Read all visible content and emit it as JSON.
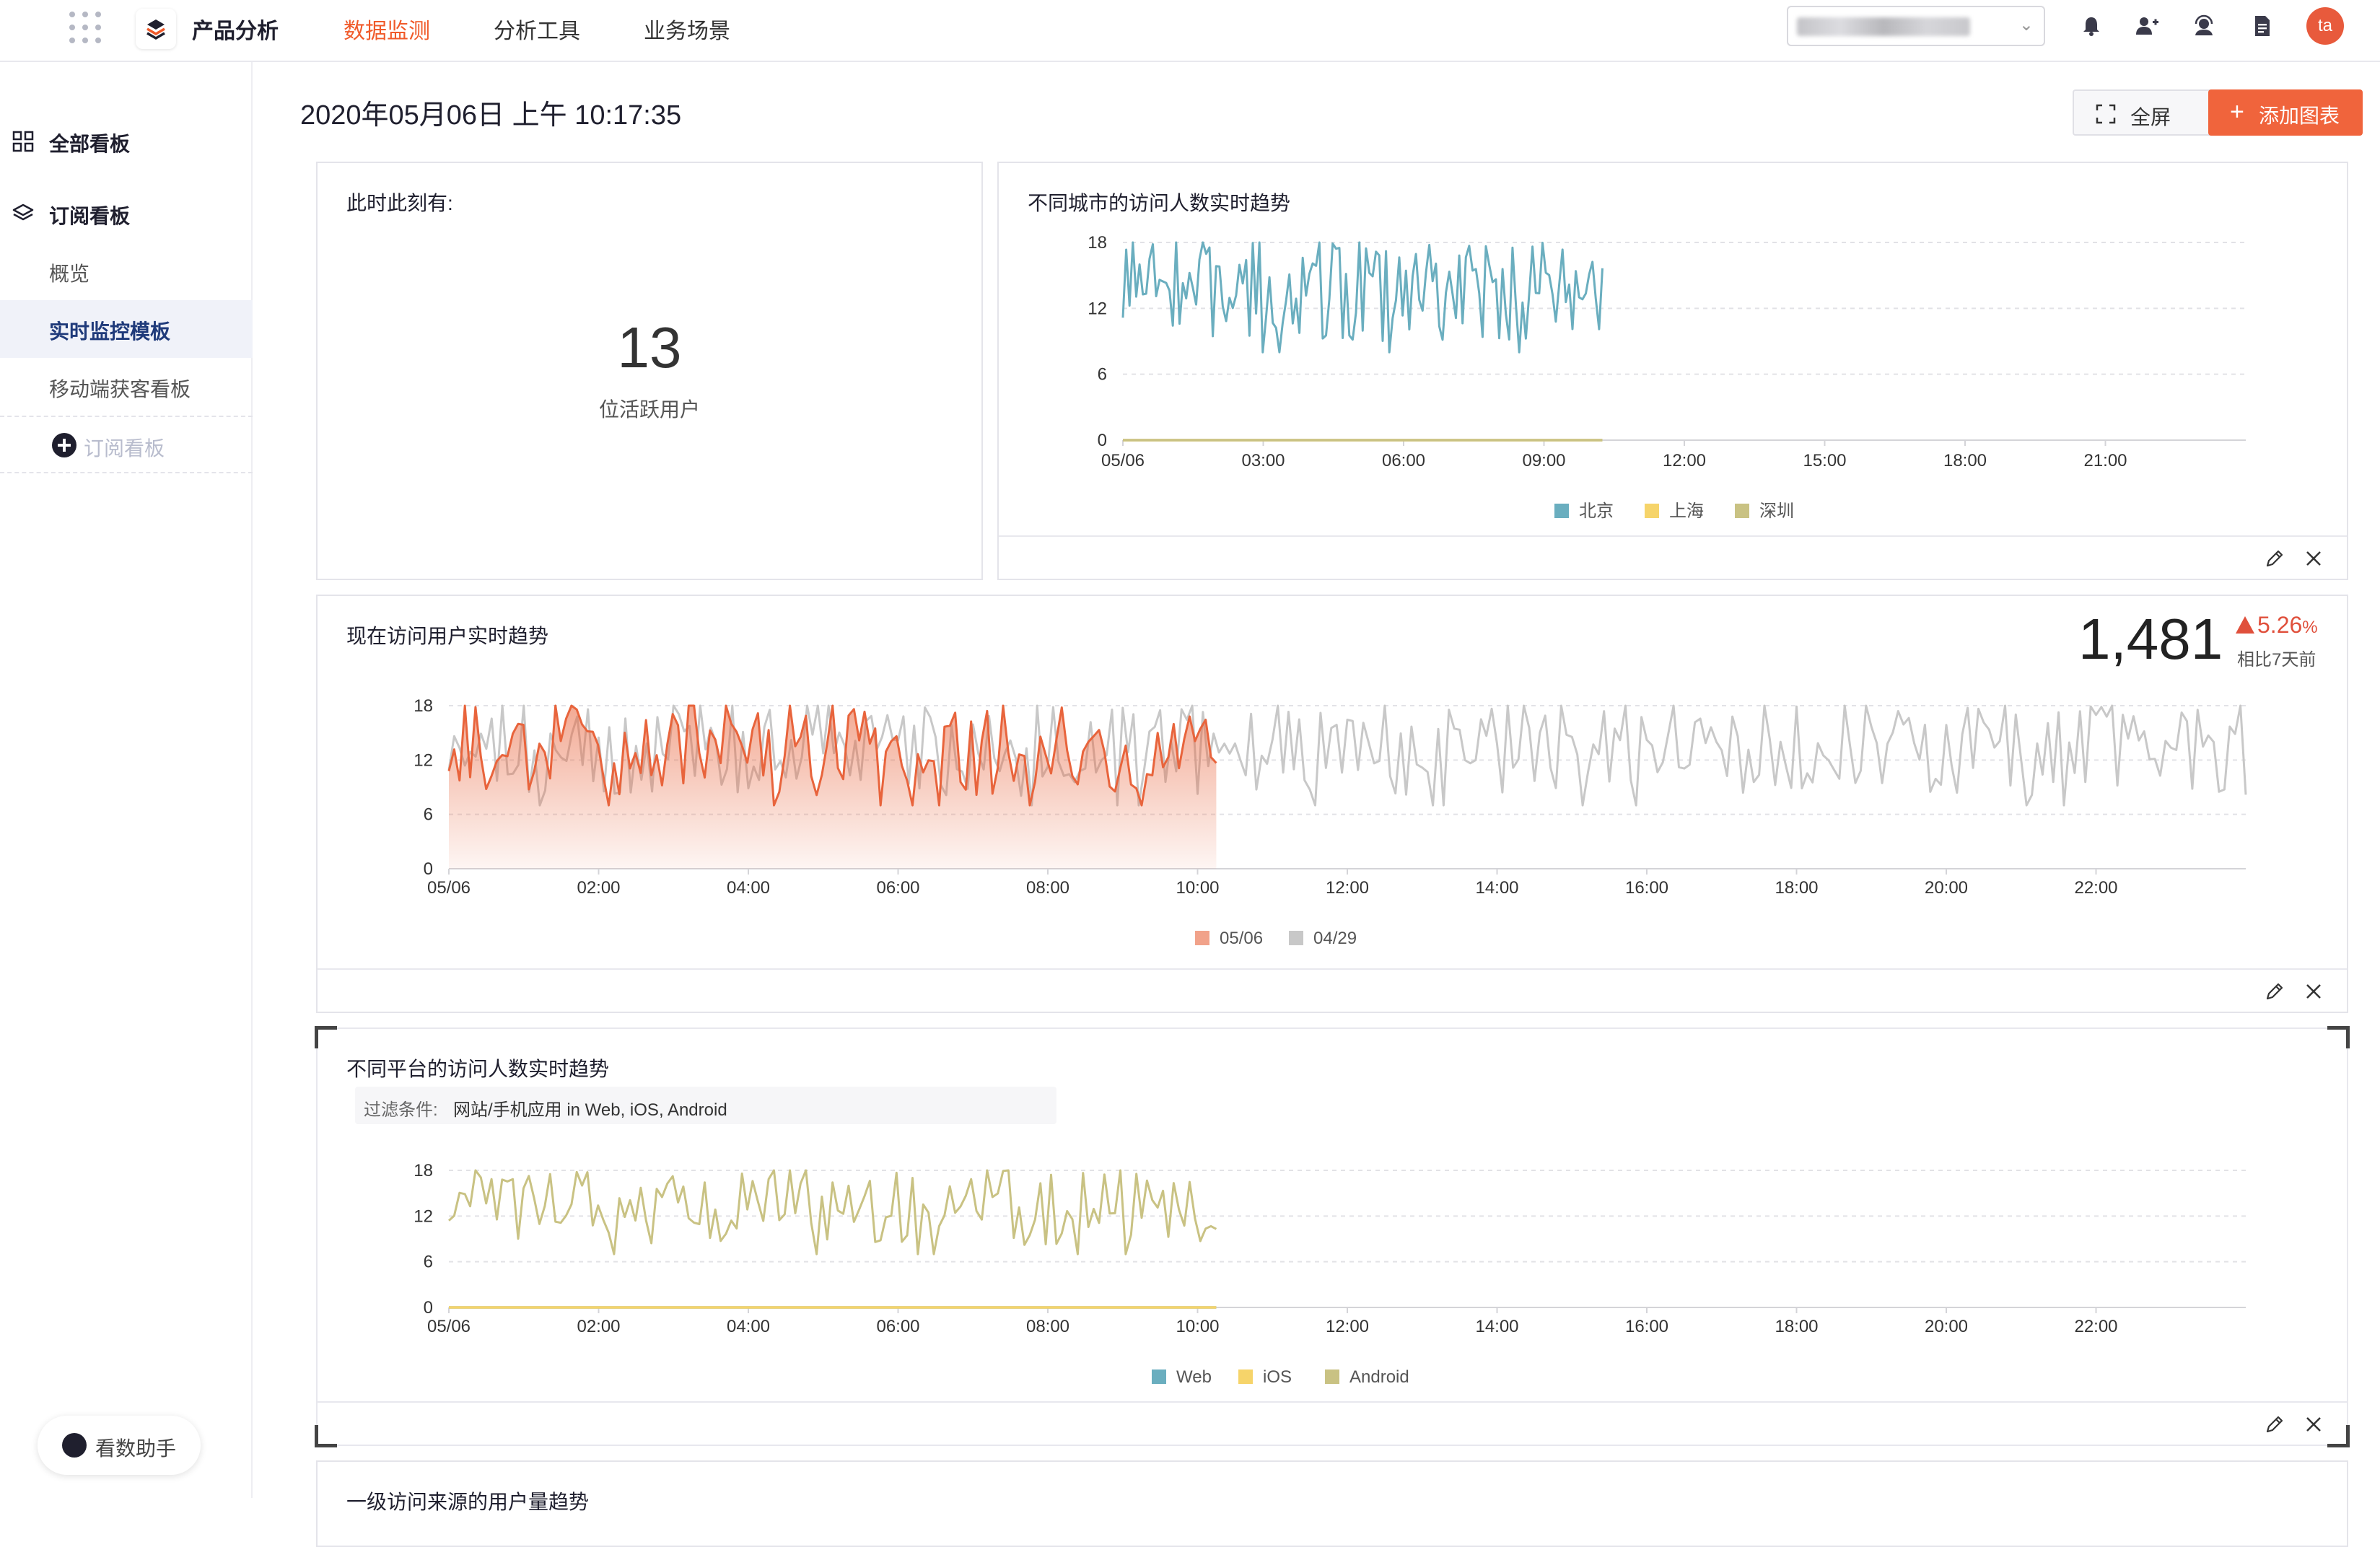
{
  "topbar": {
    "brand": "产品分析",
    "nav": [
      "数据监测",
      "分析工具",
      "业务场景"
    ],
    "active_nav": "数据监测",
    "avatar": "ta",
    "accent": "#f05a2a"
  },
  "sidebar": {
    "all_boards": "全部看板",
    "subscribed_boards": "订阅看板",
    "items": [
      "概览",
      "实时监控模板",
      "移动端获客看板"
    ],
    "active_item": "实时监控模板",
    "add_board": "订阅看板",
    "assistant": "看数助手"
  },
  "main": {
    "datetime": "2020年05月06日 上午 10:17:35",
    "fullscreen": "全屏",
    "add_chart": "添加图表"
  },
  "cards": {
    "active_now": {
      "title": "此时此刻有:",
      "value": "13",
      "unit": "位活跃用户"
    },
    "city_trend": {
      "title": "不同城市的访问人数实时趋势"
    },
    "user_trend": {
      "title": "现在访问用户实时趋势",
      "kpi": "1,481",
      "change": "5.26",
      "change_unit": "%",
      "compare": "相比7天前"
    },
    "platform_trend": {
      "title": "不同平台的访问人数实时趋势",
      "filter_label": "过滤条件:",
      "filter_value": "网站/手机应用 in Web, iOS, Android"
    },
    "source_trend": {
      "title": "一级访问来源的用户量趋势"
    }
  },
  "chart_data": [
    {
      "type": "line",
      "title": "不同城市的访问人数实时趋势",
      "x_ticks": [
        "05/06",
        "03:00",
        "06:00",
        "09:00",
        "12:00",
        "15:00",
        "18:00",
        "21:00"
      ],
      "y_ticks": [
        0,
        6,
        12,
        18
      ],
      "ylim": [
        0,
        18
      ],
      "xlim_hours": [
        0,
        24
      ],
      "series": [
        {
          "name": "北京",
          "color": "#6aaebf",
          "hours": [
            0,
            10.25
          ],
          "range": [
            8,
            18
          ]
        },
        {
          "name": "上海",
          "color": "#f6d46a",
          "hours": [
            0,
            10.25
          ],
          "value": 0
        },
        {
          "name": "深圳",
          "color": "#c9c283",
          "hours": [
            0,
            10.25
          ],
          "value": 0
        }
      ],
      "legend": "bottom",
      "grid": "horizontal-dashed"
    },
    {
      "type": "area",
      "title": "现在访问用户实时趋势",
      "x_ticks": [
        "05/06",
        "02:00",
        "04:00",
        "06:00",
        "08:00",
        "10:00",
        "12:00",
        "14:00",
        "16:00",
        "18:00",
        "20:00",
        "22:00"
      ],
      "y_ticks": [
        0,
        6,
        12,
        18
      ],
      "ylim": [
        0,
        18
      ],
      "xlim_hours": [
        0,
        24
      ],
      "series": [
        {
          "name": "05/06",
          "color": "#e8643c",
          "hours": [
            0,
            10.25
          ],
          "range": [
            7,
            18
          ]
        },
        {
          "name": "04/29",
          "color": "#c8c8c8",
          "hours": [
            0,
            24
          ],
          "range": [
            7,
            18
          ]
        }
      ],
      "legend": "bottom",
      "grid": "horizontal-dashed"
    },
    {
      "type": "line",
      "title": "不同平台的访问人数实时趋势",
      "x_ticks": [
        "05/06",
        "02:00",
        "04:00",
        "06:00",
        "08:00",
        "10:00",
        "12:00",
        "14:00",
        "16:00",
        "18:00",
        "20:00",
        "22:00"
      ],
      "y_ticks": [
        0,
        6,
        12,
        18
      ],
      "ylim": [
        0,
        18
      ],
      "xlim_hours": [
        0,
        24
      ],
      "series": [
        {
          "name": "Web",
          "color": "#6aaebf",
          "hours": [
            0,
            10.25
          ],
          "value": 0
        },
        {
          "name": "iOS",
          "color": "#f6d46a",
          "hours": [
            0,
            10.25
          ],
          "value": 0
        },
        {
          "name": "Android",
          "color": "#c9c283",
          "hours": [
            0,
            10.25
          ],
          "range": [
            7,
            18
          ]
        }
      ],
      "legend": "bottom",
      "grid": "horizontal-dashed"
    }
  ]
}
